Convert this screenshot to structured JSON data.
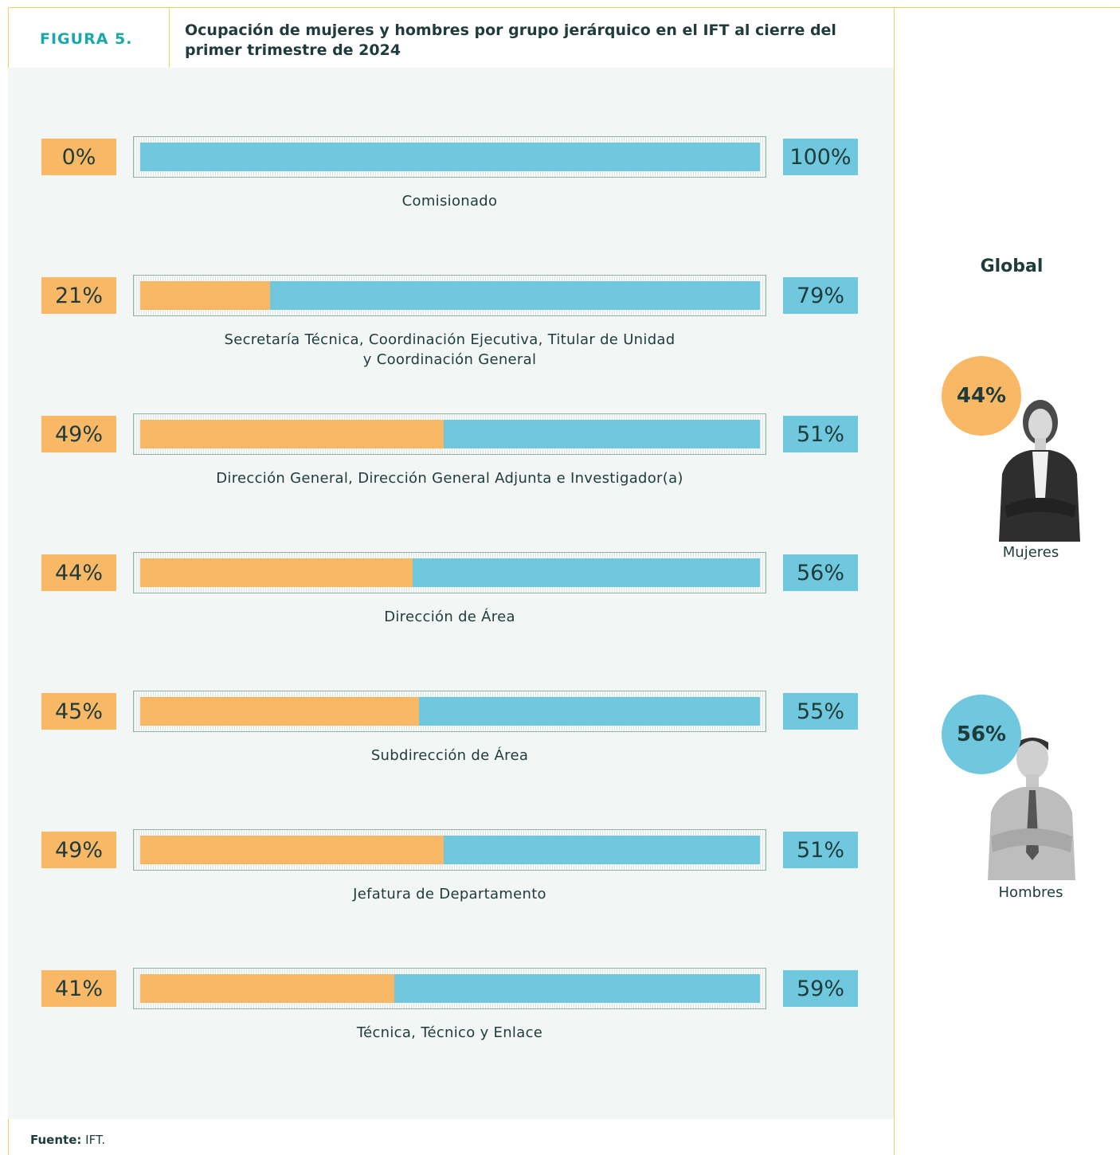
{
  "chart_data": {
    "type": "bar",
    "stacked": true,
    "orientation": "horizontal",
    "figure_label": "FIGURA 5.",
    "title": "Ocupación de mujeres y hombres por grupo jerárquico en el IFT al cierre del primer trimestre de 2024",
    "categories": [
      "Comisionado",
      "Secretaría Técnica, Coordinación Ejecutiva, Titular de Unidad\ny Coordinación General",
      "Dirección General, Dirección General Adjunta e Investigador(a)",
      "Dirección de Área",
      "Subdirección de Área",
      "Jefatura de Departamento",
      "Técnica, Técnico y Enlace"
    ],
    "series": [
      {
        "name": "Mujeres",
        "color": "#f9b866",
        "values": [
          0,
          21,
          49,
          44,
          45,
          49,
          41
        ],
        "value_labels": [
          "0%",
          "21%",
          "49%",
          "44%",
          "45%",
          "49%",
          "41%"
        ]
      },
      {
        "name": "Hombres",
        "color": "#6fc8de",
        "values": [
          100,
          79,
          51,
          56,
          55,
          51,
          59
        ],
        "value_labels": [
          "100%",
          "79%",
          "51%",
          "56%",
          "55%",
          "51%",
          "59%"
        ]
      }
    ],
    "global": {
      "title": "Global",
      "values": [
        44,
        56
      ],
      "value_labels": [
        "44%",
        "56%"
      ]
    },
    "source": {
      "label": "Fuente:",
      "text": "IFT."
    }
  }
}
